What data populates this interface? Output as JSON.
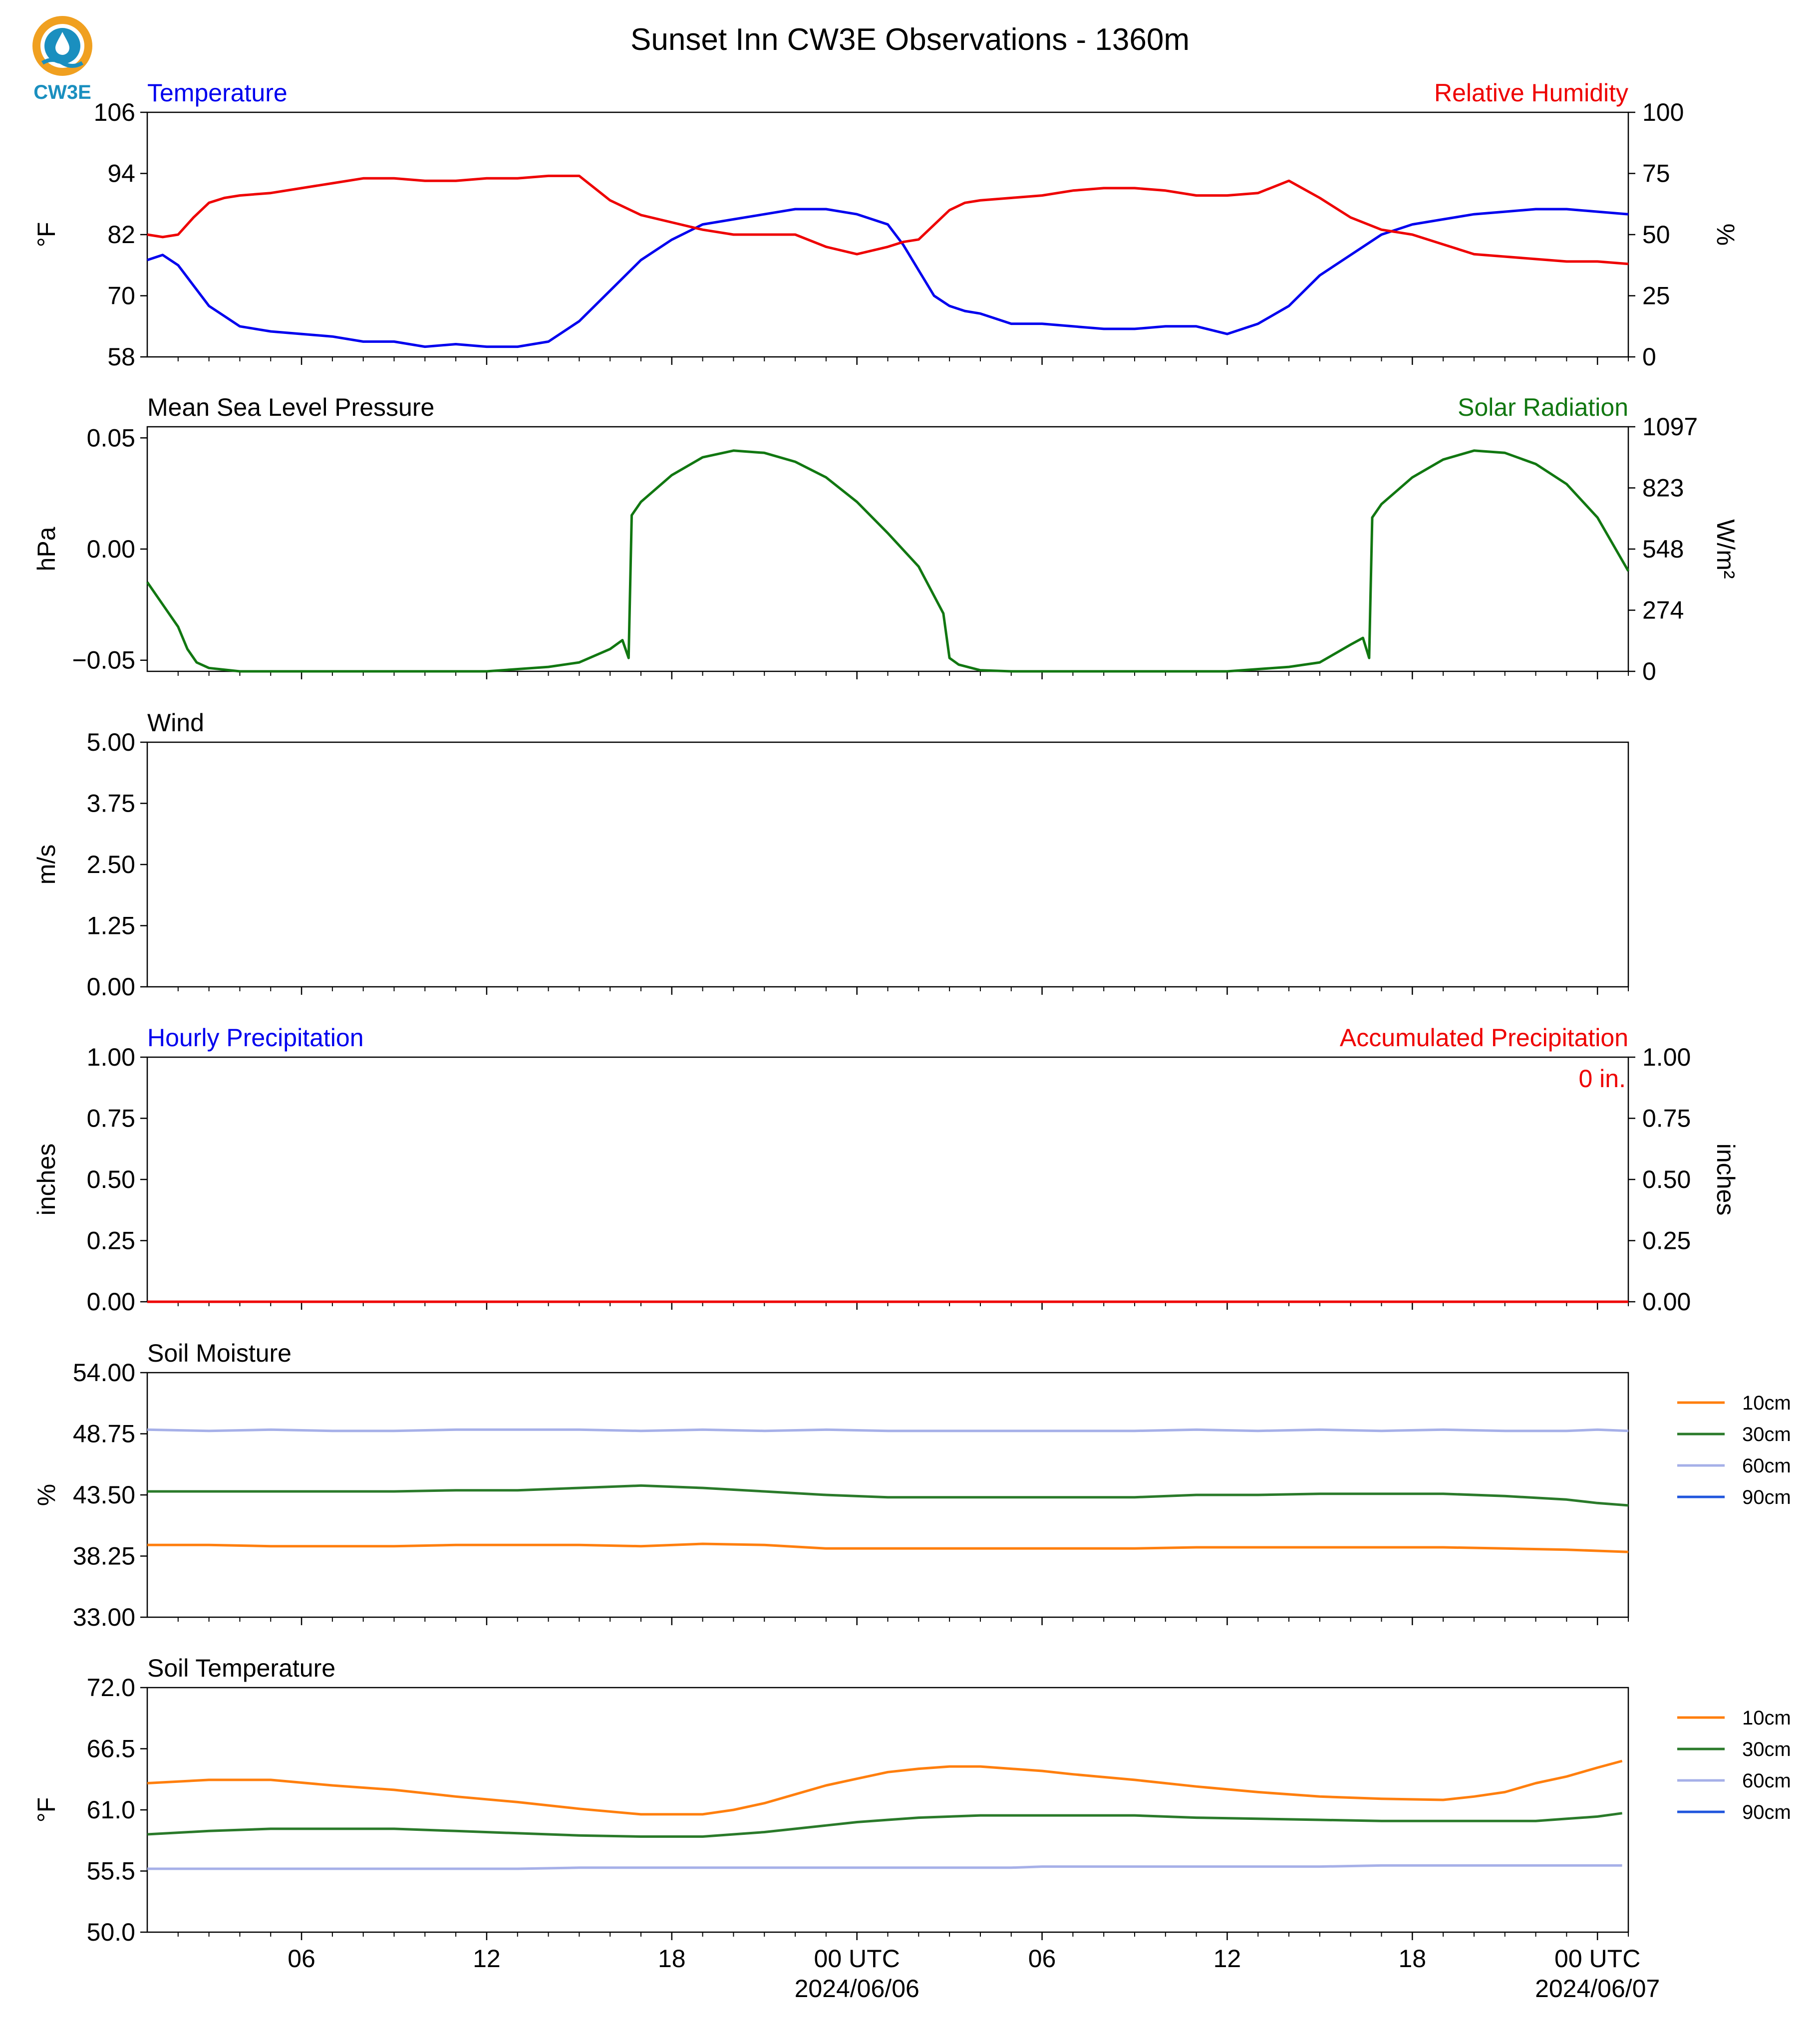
{
  "page": {
    "title": "Sunset Inn CW3E Observations - 1360m",
    "logo_text": "CW3E"
  },
  "colors": {
    "blue": "#0000ee",
    "red": "#ee0000",
    "green": "#117711",
    "orange": "#ff7f0e",
    "dark_green": "#2a7a2a",
    "lavender": "#a6b0e8",
    "royal_blue": "#1f55dd",
    "logo_orange": "#f0a020",
    "logo_blue": "#1a8fbf"
  },
  "x_axis": {
    "tick_labels": [
      "06",
      "12",
      "18",
      "00 UTC",
      "06",
      "12",
      "18",
      "00 UTC"
    ],
    "tick_hours": [
      6,
      12,
      18,
      24,
      30,
      36,
      42,
      48
    ],
    "date_labels": [
      "2024/06/06",
      "2024/06/07"
    ],
    "date_hours": [
      24,
      48
    ],
    "range_hours": [
      1,
      49
    ]
  },
  "chart_data": [
    {
      "type": "line",
      "title_left": "Temperature",
      "title_right": "Relative Humidity",
      "ylabel": "°F",
      "ylabel_right": "%",
      "ylim": [
        58,
        106
      ],
      "yticks": [
        "106",
        "94",
        "82",
        "70",
        "58"
      ],
      "ylim_right": [
        0,
        100
      ],
      "yticks_right": [
        "100",
        "75",
        "50",
        "25",
        "0"
      ],
      "x": [
        1,
        1.5,
        2,
        2.5,
        3,
        3.5,
        4,
        5,
        6,
        7,
        8,
        9,
        10,
        11,
        12,
        13,
        14,
        15,
        16,
        17,
        18,
        19,
        20,
        21,
        22,
        23,
        24,
        25,
        25.5,
        26,
        26.5,
        27,
        27.5,
        28,
        29,
        30,
        31,
        32,
        33,
        34,
        35,
        36,
        37,
        38,
        39,
        40,
        41,
        42,
        43,
        44,
        45,
        46,
        47,
        48,
        49
      ],
      "series": [
        {
          "name": "Temperature",
          "axis": "left",
          "color": "blue",
          "values": [
            77,
            78,
            76,
            72,
            68,
            66,
            64,
            63,
            62.5,
            62,
            61,
            61,
            60,
            60.5,
            60,
            60,
            61,
            65,
            71,
            77,
            81,
            84,
            85,
            86,
            87,
            87,
            86,
            84,
            80,
            75,
            70,
            68,
            67,
            66.5,
            64.5,
            64.5,
            64,
            63.5,
            63.5,
            64,
            64,
            62.5,
            64.5,
            68,
            74,
            78,
            82,
            84,
            85,
            86,
            86.5,
            87,
            87,
            86.5,
            86
          ]
        },
        {
          "name": "Relative Humidity",
          "axis": "right",
          "color": "red",
          "values": [
            50,
            49,
            50,
            57,
            63,
            65,
            66,
            67,
            69,
            71,
            73,
            73,
            72,
            72,
            73,
            73,
            74,
            74,
            64,
            58,
            55,
            52,
            50,
            50,
            50,
            45,
            42,
            45,
            47,
            48,
            54,
            60,
            63,
            64,
            65,
            66,
            68,
            69,
            69,
            68,
            66,
            66,
            67,
            72,
            65,
            57,
            52,
            50,
            46,
            42,
            41,
            40,
            39,
            39,
            38
          ]
        }
      ]
    },
    {
      "type": "line",
      "title_left": "Mean Sea Level Pressure",
      "title_right": "Solar Radiation",
      "ylabel": "hPa",
      "ylabel_right": "W/m²",
      "ylim": [
        -0.055,
        0.055
      ],
      "yticks": [
        "0.05",
        "0.00",
        "−0.05"
      ],
      "yticks_values": [
        0.05,
        0,
        -0.05
      ],
      "ylim_right": [
        0,
        1097
      ],
      "yticks_right": [
        "1097",
        "823",
        "548",
        "274",
        "0"
      ],
      "x": [
        1,
        1.5,
        2,
        2.3,
        2.6,
        3,
        4,
        5,
        12,
        14,
        15,
        15.5,
        16,
        16.4,
        16.6,
        16.7,
        17,
        18,
        19,
        20,
        21,
        22,
        23,
        24,
        25,
        26,
        26.8,
        27,
        27.3,
        28,
        29,
        30,
        36,
        38,
        39,
        39.5,
        40,
        40.4,
        40.6,
        40.7,
        41,
        42,
        43,
        44,
        45,
        46,
        47,
        48,
        49
      ],
      "series": [
        {
          "name": "Solar Radiation",
          "axis": "right",
          "color": "green",
          "values": [
            400,
            300,
            200,
            100,
            40,
            15,
            0,
            0,
            0,
            20,
            40,
            70,
            100,
            140,
            60,
            700,
            760,
            880,
            960,
            990,
            980,
            940,
            870,
            760,
            620,
            470,
            260,
            60,
            30,
            5,
            0,
            0,
            0,
            20,
            40,
            80,
            120,
            150,
            60,
            690,
            750,
            870,
            950,
            990,
            980,
            930,
            840,
            690,
            450
          ]
        }
      ]
    },
    {
      "type": "line",
      "title_left": "Wind",
      "ylabel": "m/s",
      "ylim": [
        0,
        5
      ],
      "yticks": [
        "5.00",
        "3.75",
        "2.50",
        "1.25",
        "0.00"
      ],
      "series": []
    },
    {
      "type": "line",
      "title_left": "Hourly Precipitation",
      "title_right": "Accumulated Precipitation",
      "ylabel": "inches",
      "ylabel_right": "inches",
      "ylim": [
        0,
        1
      ],
      "yticks": [
        "1.00",
        "0.75",
        "0.50",
        "0.25",
        "0.00"
      ],
      "ylim_right": [
        0,
        1
      ],
      "yticks_right": [
        "1.00",
        "0.75",
        "0.50",
        "0.25",
        "0.00"
      ],
      "annotation": "0 in.",
      "x": [
        1,
        49
      ],
      "series": [
        {
          "name": "Accumulated Precipitation",
          "axis": "right",
          "color": "red",
          "values": [
            0,
            0
          ]
        }
      ]
    },
    {
      "type": "line",
      "title_left": "Soil Moisture",
      "ylabel": "%",
      "ylim": [
        33,
        54
      ],
      "yticks": [
        "54.00",
        "48.75",
        "43.50",
        "38.25",
        "33.00"
      ],
      "legend": [
        "10cm",
        "30cm",
        "60cm",
        "90cm"
      ],
      "legend_colors": [
        "orange",
        "dark_green",
        "lavender",
        "royal_blue"
      ],
      "x": [
        1,
        3,
        5,
        7,
        9,
        11,
        13,
        15,
        17,
        19,
        21,
        23,
        25,
        27,
        29,
        31,
        33,
        35,
        37,
        39,
        41,
        43,
        45,
        47,
        48,
        49
      ],
      "series": [
        {
          "name": "10cm",
          "color": "orange",
          "values": [
            39.2,
            39.2,
            39.1,
            39.1,
            39.1,
            39.2,
            39.2,
            39.2,
            39.1,
            39.3,
            39.2,
            38.9,
            38.9,
            38.9,
            38.9,
            38.9,
            38.9,
            39,
            39,
            39,
            39,
            39,
            38.9,
            38.8,
            38.7,
            38.6
          ]
        },
        {
          "name": "30cm",
          "color": "dark_green",
          "values": [
            43.8,
            43.8,
            43.8,
            43.8,
            43.8,
            43.9,
            43.9,
            44.1,
            44.3,
            44.1,
            43.8,
            43.5,
            43.3,
            43.3,
            43.3,
            43.3,
            43.3,
            43.5,
            43.5,
            43.6,
            43.6,
            43.6,
            43.4,
            43.1,
            42.8,
            42.6
          ]
        },
        {
          "name": "60cm",
          "color": "lavender",
          "values": [
            49.1,
            49,
            49.1,
            49,
            49,
            49.1,
            49.1,
            49.1,
            49,
            49.1,
            49,
            49.1,
            49,
            49,
            49,
            49,
            49,
            49.1,
            49,
            49.1,
            49,
            49.1,
            49,
            49,
            49.1,
            49
          ]
        }
      ]
    },
    {
      "type": "line",
      "title_left": "Soil Temperature",
      "ylabel": "°F",
      "ylim": [
        50,
        72
      ],
      "yticks": [
        "72.0",
        "66.5",
        "61.0",
        "55.5",
        "50.0"
      ],
      "legend": [
        "10cm",
        "30cm",
        "60cm",
        "90cm"
      ],
      "legend_colors": [
        "orange",
        "dark_green",
        "lavender",
        "royal_blue"
      ],
      "x": [
        1,
        3,
        5,
        7,
        9,
        11,
        13,
        15,
        17,
        19,
        20,
        21,
        22,
        23,
        24,
        25,
        26,
        27,
        28,
        29,
        30,
        31,
        33,
        35,
        37,
        39,
        41,
        43,
        44,
        45,
        46,
        47,
        48,
        48.8
      ],
      "series": [
        {
          "name": "10cm",
          "color": "orange",
          "values": [
            63.4,
            63.7,
            63.7,
            63.2,
            62.8,
            62.2,
            61.7,
            61.1,
            60.6,
            60.6,
            61,
            61.6,
            62.4,
            63.2,
            63.8,
            64.4,
            64.7,
            64.9,
            64.9,
            64.7,
            64.5,
            64.2,
            63.7,
            63.1,
            62.6,
            62.2,
            62,
            61.9,
            62.2,
            62.6,
            63.4,
            64,
            64.8,
            65.4
          ]
        },
        {
          "name": "30cm",
          "color": "dark_green",
          "values": [
            58.8,
            59.1,
            59.3,
            59.3,
            59.3,
            59.1,
            58.9,
            58.7,
            58.6,
            58.6,
            58.8,
            59,
            59.3,
            59.6,
            59.9,
            60.1,
            60.3,
            60.4,
            60.5,
            60.5,
            60.5,
            60.5,
            60.5,
            60.3,
            60.2,
            60.1,
            60,
            60,
            60,
            60,
            60,
            60.2,
            60.4,
            60.7
          ]
        },
        {
          "name": "60cm",
          "color": "lavender",
          "values": [
            55.7,
            55.7,
            55.7,
            55.7,
            55.7,
            55.7,
            55.7,
            55.8,
            55.8,
            55.8,
            55.8,
            55.8,
            55.8,
            55.8,
            55.8,
            55.8,
            55.8,
            55.8,
            55.8,
            55.8,
            55.9,
            55.9,
            55.9,
            55.9,
            55.9,
            55.9,
            56,
            56,
            56,
            56,
            56,
            56,
            56,
            56
          ]
        }
      ]
    }
  ]
}
